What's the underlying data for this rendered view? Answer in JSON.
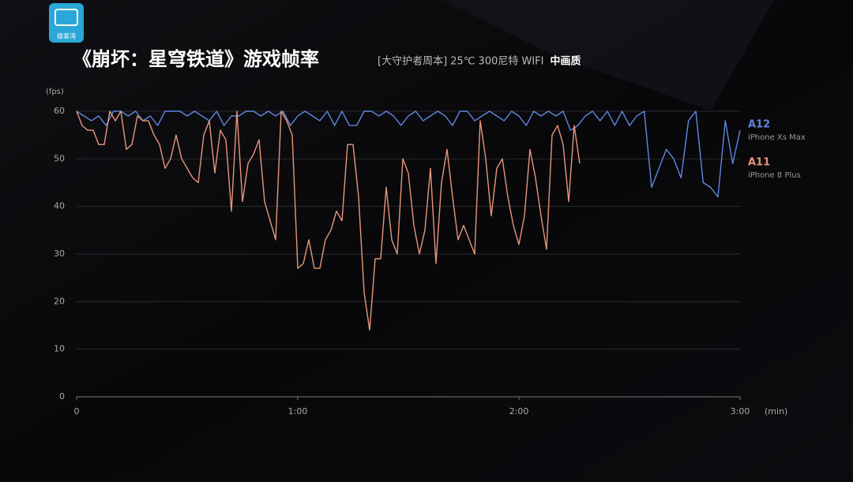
{
  "logo": "极客湾",
  "chart_data": {
    "type": "line",
    "title": "《崩坏：星穹铁道》游戏帧率",
    "subtitle": "[大守护者周本] 25℃ 300尼特 WIFI",
    "subtitle_bold": "中画质",
    "ylabel": "(fps)",
    "xlabel": "(min)",
    "xlim": [
      0,
      180
    ],
    "xticks": [
      0,
      {
        "value": 60,
        "label": "1:00"
      },
      {
        "value": 120,
        "label": "2:00"
      },
      {
        "value": 180,
        "label": "3:00"
      }
    ],
    "ylim": [
      0,
      60
    ],
    "yticks": [
      0,
      10,
      20,
      30,
      40,
      50,
      60
    ],
    "grid": true,
    "series": [
      {
        "name": "A12",
        "device": "iPhone Xs Max",
        "color": "#5f86de",
        "x": [
          0,
          2,
          4,
          6,
          8,
          10,
          12,
          14,
          16,
          18,
          20,
          22,
          24,
          26,
          28,
          30,
          32,
          34,
          36,
          38,
          40,
          42,
          44,
          46,
          48,
          50,
          52,
          54,
          56,
          58,
          60,
          62,
          64,
          66,
          68,
          70,
          72,
          74,
          76,
          78,
          80,
          82,
          84,
          86,
          88,
          90,
          92,
          94,
          96,
          98,
          100,
          102,
          104,
          106,
          108,
          110,
          112,
          114,
          116,
          118,
          120,
          122,
          124,
          126,
          128,
          130,
          132,
          134,
          136,
          138,
          140,
          142,
          144,
          146,
          148,
          150,
          152,
          154,
          156,
          158,
          160,
          162,
          164,
          166,
          168,
          170,
          172,
          174,
          176,
          178,
          180
        ],
        "values": [
          60,
          59,
          58,
          59,
          57,
          60,
          60,
          59,
          60,
          58,
          59,
          57,
          60,
          60,
          60,
          59,
          60,
          59,
          58,
          60,
          57,
          59,
          59,
          60,
          60,
          59,
          60,
          59,
          60,
          57,
          59,
          60,
          59,
          58,
          60,
          57,
          60,
          57,
          57,
          60,
          60,
          59,
          60,
          59,
          57,
          59,
          60,
          58,
          59,
          60,
          59,
          57,
          60,
          60,
          58,
          59,
          60,
          59,
          58,
          60,
          59,
          57,
          60,
          59,
          60,
          59,
          60,
          56,
          57,
          59,
          60,
          58,
          60,
          57,
          60,
          57,
          59,
          60,
          44,
          48,
          52,
          50,
          46,
          58,
          60,
          45,
          44,
          42,
          58,
          49,
          56
        ]
      },
      {
        "name": "A11",
        "device": "iPhone 8 Plus",
        "color": "#e8967a",
        "x": [
          0,
          1.5,
          3,
          4.5,
          6,
          7.5,
          9,
          10.5,
          12,
          13.5,
          15,
          16.5,
          18,
          19.5,
          21,
          22.5,
          24,
          25.5,
          27,
          28.5,
          30,
          31.5,
          33,
          34.5,
          36,
          37.5,
          39,
          40.5,
          42,
          43.5,
          45,
          46.5,
          48,
          49.5,
          51,
          52.5,
          54,
          55.5,
          57,
          58.5,
          60,
          61.5,
          63,
          64.5,
          66,
          67.5,
          69,
          70.5,
          72,
          73.5,
          75,
          76.5,
          78,
          79.5,
          81,
          82.5,
          84,
          85.5,
          87,
          88.5,
          90,
          91.5,
          93,
          94.5,
          96,
          97.5,
          99,
          100.5,
          102,
          103.5,
          105,
          106.5,
          108,
          109.5,
          111,
          112.5,
          114,
          115.5,
          117,
          118.5,
          120,
          121.5,
          123,
          124.5,
          126,
          127.5,
          129,
          130.5,
          132,
          133.5,
          135,
          136.5
        ],
        "values": [
          60,
          57,
          56,
          56,
          53,
          53,
          60,
          58,
          60,
          52,
          53,
          59,
          58,
          58,
          55,
          53,
          48,
          50,
          55,
          50,
          48,
          46,
          45,
          55,
          58,
          47,
          56,
          54,
          39,
          60,
          41,
          49,
          51,
          54,
          41,
          37,
          33,
          60,
          58,
          55,
          27,
          28,
          33,
          27,
          27,
          33,
          35,
          39,
          37,
          53,
          53,
          42,
          22,
          14,
          29,
          29,
          44,
          33,
          30,
          50,
          47,
          36,
          30,
          35,
          48,
          28,
          45,
          52,
          42,
          33,
          36,
          33,
          30,
          58,
          50,
          38,
          48,
          50,
          42,
          36,
          32,
          38,
          52,
          46,
          38,
          31,
          55,
          57,
          53,
          41,
          57,
          49
        ]
      }
    ]
  }
}
